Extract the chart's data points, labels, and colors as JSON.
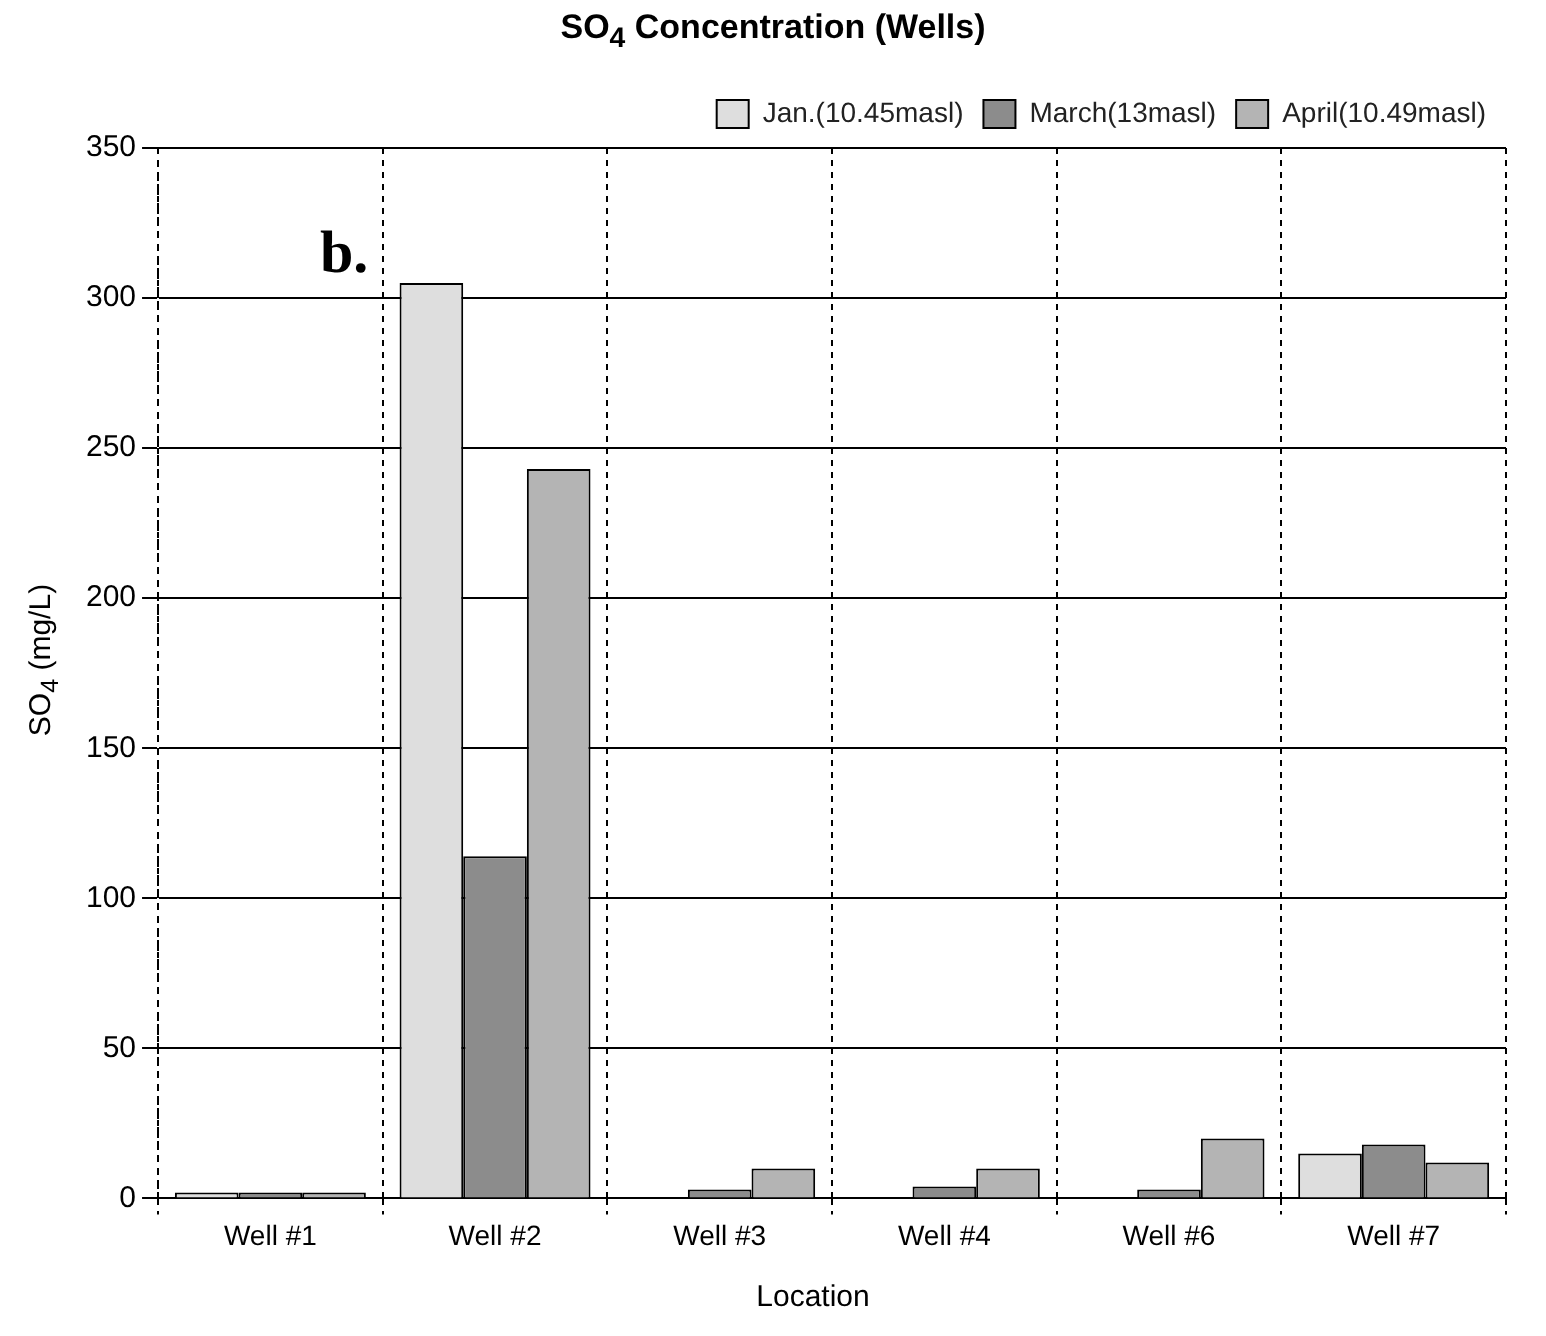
{
  "chart_data": {
    "type": "bar",
    "title": "SO$_{4}$ Concentration (Wells)",
    "xlabel": "Location",
    "ylabel": "SO$_{4}$ (mg/L)",
    "annotations": [
      "b."
    ],
    "categories": [
      "Well #1",
      "Well #2",
      "Well #3",
      "Well #4",
      "Well #6",
      "Well #7"
    ],
    "series": [
      {
        "name": "Jan.(10.45masl)",
        "color": "#dedede",
        "values": [
          2,
          305,
          null,
          null,
          null,
          15
        ]
      },
      {
        "name": "March(13masl)",
        "color": "#8c8c8c",
        "values": [
          2,
          114,
          3,
          4,
          3,
          18
        ]
      },
      {
        "name": "April(10.49masl)",
        "color": "#b4b4b4",
        "values": [
          2,
          243,
          10,
          10,
          20,
          12
        ]
      }
    ],
    "ylim": [
      0,
      350
    ],
    "yticks": [
      0,
      50,
      100,
      150,
      200,
      250,
      300,
      350
    ],
    "grid": true,
    "legend": "top right"
  }
}
